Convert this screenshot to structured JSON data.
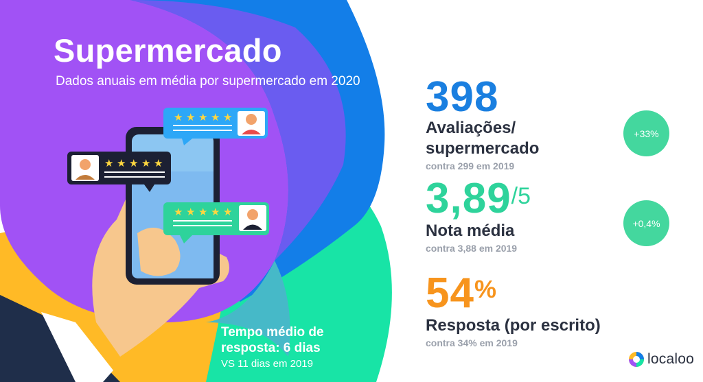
{
  "header": {
    "title": "Supermercado",
    "subtitle": "Dados anuais em média por supermercado em 2020"
  },
  "response_time": {
    "title": "Tempo médio de resposta: 6 dias",
    "comparison": "VS 11 dias em 2019"
  },
  "stats": [
    {
      "value": "398",
      "suffix": "",
      "label": "Avaliações/ supermercado",
      "comparison": "contra 299 em 2019",
      "badge": "+33%",
      "color": "#1a7fe0"
    },
    {
      "value": "3,89",
      "suffix": "/5",
      "label": "Nota média",
      "comparison": "contra 3,88 em 2019",
      "badge": "+0,4%",
      "color": "#2ed39b"
    },
    {
      "value": "54",
      "suffix": "%",
      "label": "Resposta (por escrito)",
      "comparison": "contra 34% em 2019",
      "badge": "",
      "color": "#f7941d"
    }
  ],
  "colors": {
    "purple": "#a152f5",
    "blue": "#137ee8",
    "green": "#18e4a6",
    "yellow": "#ffba26",
    "badge": "#44d79e",
    "text_dark": "#2b3140"
  },
  "icons": [
    "smartphone-illustration",
    "hand-illustration",
    "review-bubble-icon",
    "star-icon",
    "avatar-icon",
    "localoo-logo-icon"
  ],
  "logo": {
    "text": "localoo"
  }
}
